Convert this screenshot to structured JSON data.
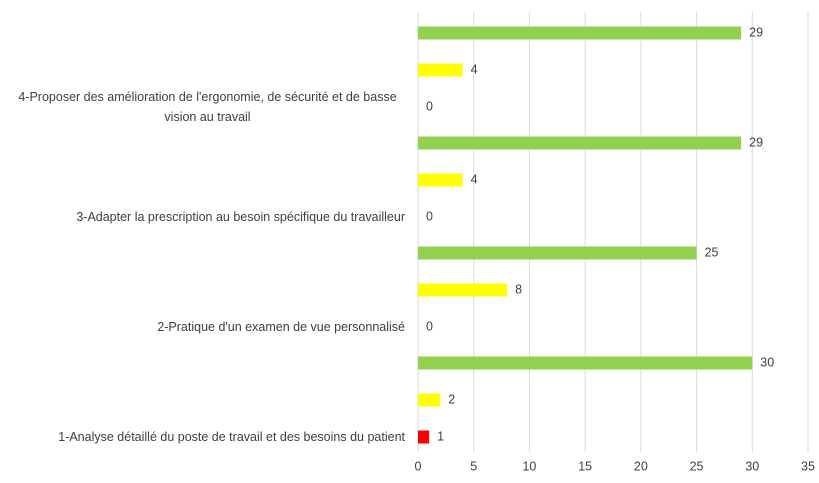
{
  "chart_data": {
    "type": "bar",
    "orientation": "horizontal",
    "categories": [
      "1-Analyse détaillé du poste de travail et des besoins du patient",
      "2-Pratique d'un examen de vue personnalisé",
      "3-Adapter la prescription au besoin spécifique du travailleur",
      "4-Proposer des amélioration de l'ergonomie, de sécurité et de basse vision au travail"
    ],
    "series": [
      {
        "color": "#ff0000",
        "values": [
          1,
          0,
          0,
          0
        ]
      },
      {
        "color": "#ffff00",
        "values": [
          2,
          8,
          4,
          4
        ]
      },
      {
        "color": "#92d050",
        "values": [
          30,
          25,
          29,
          29
        ]
      }
    ],
    "xlim": [
      0,
      35
    ],
    "xticks": [
      0,
      5,
      10,
      15,
      20,
      25,
      30,
      35
    ],
    "grid": true
  }
}
